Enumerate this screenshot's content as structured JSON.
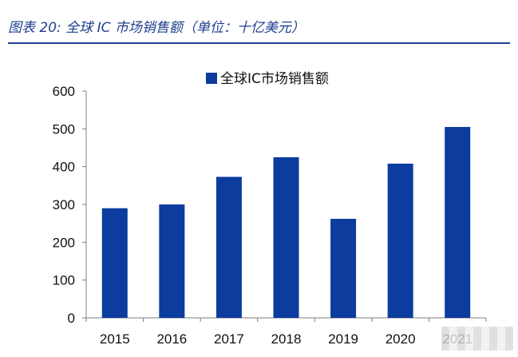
{
  "figure": {
    "title": "图表 20:  全球 IC 市场销售额（单位：十亿美元）"
  },
  "chart_data": {
    "type": "bar",
    "categories": [
      "2015",
      "2016",
      "2017",
      "2018",
      "2019",
      "2020",
      "2021"
    ],
    "series": [
      {
        "name": "全球IC市场销售额",
        "values": [
          290,
          300,
          373,
          425,
          262,
          408,
          505
        ]
      }
    ],
    "title": "",
    "xlabel": "",
    "ylabel": "",
    "ylim": [
      0,
      600
    ],
    "yticks": [
      0,
      100,
      200,
      300,
      400,
      500,
      600
    ],
    "grid": false,
    "legend": "top-center",
    "bar_color": "#0b3c9e"
  }
}
